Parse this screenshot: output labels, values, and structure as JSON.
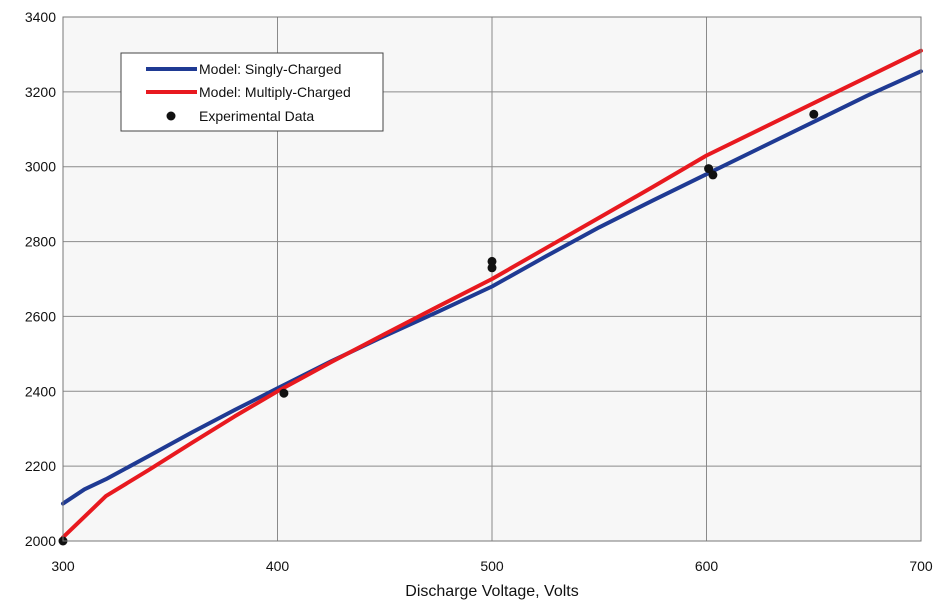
{
  "chart_data": {
    "type": "line",
    "title": "",
    "xlabel": "Discharge Voltage, Volts",
    "ylabel": "",
    "xlim": [
      300,
      700
    ],
    "ylim": [
      2000,
      3400
    ],
    "xticks": [
      300,
      400,
      500,
      600,
      700
    ],
    "yticks": [
      2000,
      2200,
      2400,
      2600,
      2800,
      3000,
      3200,
      3400
    ],
    "grid": true,
    "legend_position": "top-left",
    "series": [
      {
        "name": "Model: Singly-Charged",
        "kind": "line",
        "color": "#1f3a93",
        "x": [
          300,
          310,
          320,
          340,
          360,
          380,
          400,
          425,
          450,
          475,
          500,
          525,
          550,
          575,
          600,
          625,
          650,
          675,
          700
        ],
        "y": [
          2100,
          2138,
          2165,
          2227,
          2290,
          2350,
          2408,
          2480,
          2548,
          2613,
          2680,
          2760,
          2838,
          2910,
          2980,
          3050,
          3120,
          3190,
          3255
        ]
      },
      {
        "name": "Model: Multiply-Charged",
        "kind": "line",
        "color": "#e8191f",
        "x": [
          300,
          310,
          320,
          340,
          360,
          380,
          400,
          425,
          450,
          475,
          500,
          525,
          550,
          575,
          600,
          625,
          650,
          675,
          700
        ],
        "y": [
          2010,
          2065,
          2120,
          2190,
          2262,
          2333,
          2400,
          2478,
          2553,
          2627,
          2700,
          2782,
          2864,
          2946,
          3030,
          3100,
          3170,
          3240,
          3310
        ]
      },
      {
        "name": "Experimental Data",
        "kind": "scatter",
        "color": "#111111",
        "x": [
          300,
          403,
          500,
          500,
          601,
          603,
          650
        ],
        "y": [
          2000,
          2395,
          2747,
          2730,
          2995,
          2978,
          3140
        ]
      }
    ]
  }
}
